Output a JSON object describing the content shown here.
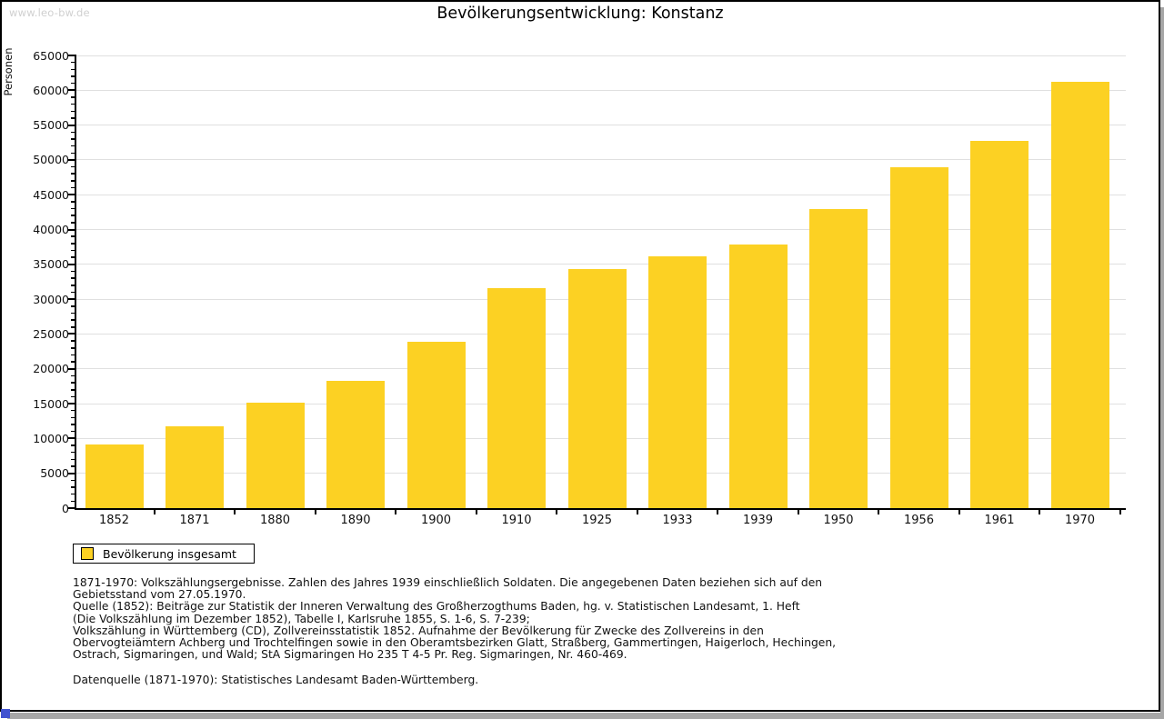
{
  "window": {
    "watermark": "www.leo-bw.de"
  },
  "chart_data": {
    "type": "bar",
    "title": "Bevölkerungsentwicklung: Konstanz",
    "xlabel": "",
    "ylabel": "Personen",
    "ylim": [
      0,
      65000
    ],
    "ytick_interval": 5000,
    "y_minor_tick_interval": 1000,
    "grid": true,
    "legend_position": "bottom-left",
    "bar_color": "#fcd123",
    "series_name": "Bevölkerung insgesamt",
    "categories": [
      "1852",
      "1871",
      "1880",
      "1890",
      "1900",
      "1910",
      "1925",
      "1933",
      "1939",
      "1950",
      "1956",
      "1961",
      "1970"
    ],
    "values": [
      9200,
      11800,
      15200,
      18300,
      23900,
      31600,
      34300,
      36200,
      37800,
      43000,
      49000,
      52700,
      61200
    ]
  },
  "legend": {
    "items": [
      {
        "label": "Bevölkerung insgesamt",
        "color": "#fcd123"
      }
    ]
  },
  "footnotes": {
    "lines": [
      "1871-1970: Volkszählungsergebnisse. Zahlen des Jahres 1939 einschließlich Soldaten. Die angegebenen Daten beziehen sich auf den",
      "Gebietsstand vom 27.05.1970.",
      "Quelle (1852): Beiträge zur Statistik der Inneren Verwaltung des Großherzogthums Baden, hg. v. Statistischen Landesamt, 1. Heft",
      "(Die Volkszählung im Dezember 1852), Tabelle I, Karlsruhe 1855, S. 1-6, S. 7-239;",
      "Volkszählung in Württemberg (CD), Zollvereinsstatistik 1852. Aufnahme der Bevölkerung für Zwecke des Zollvereins in den",
      "Obervogteiämtern Achberg und Trochtelfingen sowie in den Oberamtsbezirken Glatt, Straßberg, Gammertingen, Haigerloch, Hechingen,",
      "Ostrach, Sigmaringen, und Wald; StA Sigmaringen Ho 235 T 4-5 Pr. Reg. Sigmaringen, Nr. 460-469."
    ],
    "datasource": "Datenquelle (1871-1970): Statistisches Landesamt Baden-Württemberg."
  }
}
